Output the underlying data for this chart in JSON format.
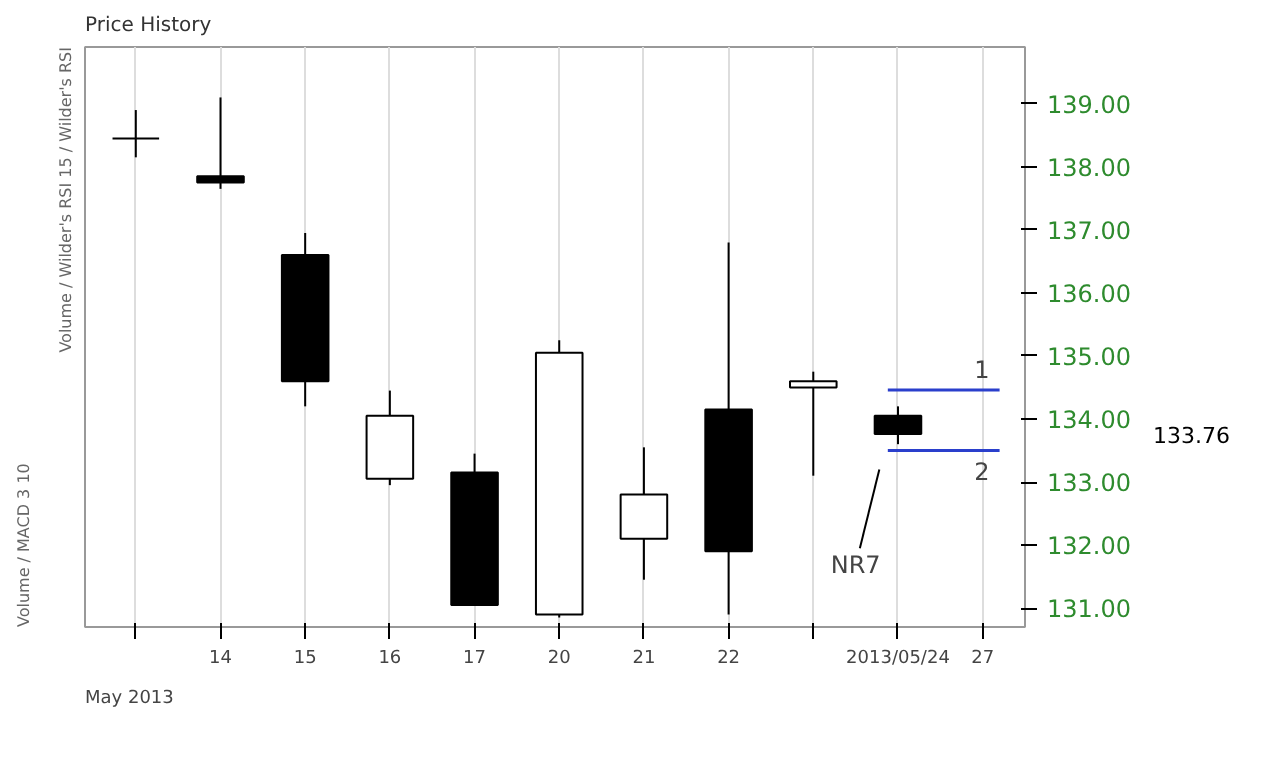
{
  "chart_data": {
    "type": "candlestick",
    "title": "Price History",
    "categories": [
      null,
      "14",
      "15",
      "16",
      "17",
      "20",
      "21",
      "22",
      null,
      "2013/05/24",
      "27"
    ],
    "ohlc": [
      [
        138.45,
        138.9,
        138.15,
        138.45
      ],
      [
        137.85,
        139.1,
        137.65,
        137.75
      ],
      [
        136.6,
        136.95,
        134.2,
        134.6
      ],
      [
        133.05,
        134.45,
        132.95,
        134.05
      ],
      [
        133.15,
        133.45,
        131.05,
        131.05
      ],
      [
        130.9,
        135.25,
        130.85,
        135.05
      ],
      [
        132.1,
        133.55,
        131.45,
        132.8
      ],
      [
        134.15,
        136.8,
        130.9,
        131.9
      ],
      [
        134.5,
        134.75,
        133.1,
        134.6
      ],
      [
        134.05,
        134.2,
        133.6,
        133.76
      ],
      null
    ],
    "ylim": [
      130.7,
      139.9
    ],
    "yticks": [
      {
        "value": 131,
        "label": "131.00"
      },
      {
        "value": 132,
        "label": "132.00"
      },
      {
        "value": 133,
        "label": "133.00"
      },
      {
        "value": 134,
        "label": "134.00"
      },
      {
        "value": 135,
        "label": "135.00"
      },
      {
        "value": 136,
        "label": "136.00"
      },
      {
        "value": 137,
        "label": "137.00"
      },
      {
        "value": 138,
        "label": "138.00"
      },
      {
        "value": 139,
        "label": "139.00"
      }
    ],
    "ref_lines": [
      {
        "axis": "y",
        "value": 134.46,
        "color": "#2a3fcc"
      },
      {
        "axis": "y",
        "value": 133.5,
        "color": "#2a3fcc"
      }
    ],
    "annotations": [
      "NR7",
      "1",
      "2",
      "May 2013",
      "Volume / Wilder's RSI 15 / Wilder's RSI",
      "Volume / MACD 3 10",
      "133.76"
    ],
    "grid": "x"
  }
}
